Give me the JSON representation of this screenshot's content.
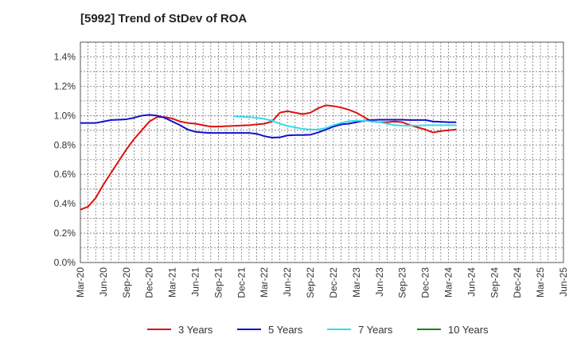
{
  "chart_data": {
    "type": "line",
    "title": "[5992]  Trend of StDev of ROA",
    "xlabel": "",
    "ylabel": "",
    "x_tick_labels": [
      "Mar-20",
      "Jun-20",
      "Sep-20",
      "Dec-20",
      "Mar-21",
      "Jun-21",
      "Sep-21",
      "Dec-21",
      "Mar-22",
      "Jun-22",
      "Sep-22",
      "Dec-22",
      "Mar-23",
      "Jun-23",
      "Sep-23",
      "Dec-23",
      "Mar-24",
      "Jun-24",
      "Sep-24",
      "Dec-24",
      "Mar-25",
      "Jun-25"
    ],
    "y_tick_labels": [
      "0.0%",
      "0.2%",
      "0.4%",
      "0.6%",
      "0.8%",
      "1.0%",
      "1.2%",
      "1.4%"
    ],
    "ylim": [
      0,
      1.5
    ],
    "grid": true,
    "legend_position": "bottom",
    "series": [
      {
        "name": "3 Years",
        "color": "#dd1111",
        "start_index": 0,
        "values": [
          0.36,
          0.38,
          0.44,
          0.53,
          0.61,
          0.69,
          0.77,
          0.84,
          0.9,
          0.96,
          0.99,
          0.99,
          0.98,
          0.96,
          0.95,
          0.945,
          0.935,
          0.925,
          0.925,
          0.928,
          0.93,
          0.933,
          0.935,
          0.94,
          0.945,
          0.96,
          1.02,
          1.03,
          1.02,
          1.01,
          1.02,
          1.05,
          1.07,
          1.065,
          1.055,
          1.04,
          1.02,
          0.99,
          0.96,
          0.955,
          0.955,
          0.96,
          0.955,
          0.935,
          0.92,
          0.905,
          0.885,
          0.895,
          0.9,
          0.905
        ]
      },
      {
        "name": "5 Years",
        "color": "#1111cc",
        "start_index": 0,
        "values": [
          0.95,
          0.95,
          0.95,
          0.96,
          0.97,
          0.972,
          0.975,
          0.985,
          1.0,
          1.005,
          1.0,
          0.985,
          0.96,
          0.935,
          0.905,
          0.89,
          0.885,
          0.882,
          0.882,
          0.882,
          0.882,
          0.882,
          0.882,
          0.876,
          0.86,
          0.85,
          0.852,
          0.865,
          0.868,
          0.868,
          0.87,
          0.885,
          0.905,
          0.925,
          0.94,
          0.945,
          0.955,
          0.965,
          0.97,
          0.972,
          0.972,
          0.972,
          0.972,
          0.97,
          0.97,
          0.97,
          0.96,
          0.958,
          0.955,
          0.955
        ]
      },
      {
        "name": "7 Years",
        "color": "#33ddee",
        "start_index": 20,
        "values": [
          0.995,
          0.992,
          0.99,
          0.985,
          0.978,
          0.965,
          0.945,
          0.93,
          0.92,
          0.91,
          0.905,
          0.905,
          0.915,
          0.935,
          0.95,
          0.962,
          0.965,
          0.965,
          0.96,
          0.955,
          0.945,
          0.935,
          0.932,
          0.932,
          0.932,
          0.935,
          0.935,
          0.935,
          0.935,
          0.935
        ]
      },
      {
        "name": "10 Years",
        "color": "#118811",
        "start_index": 0,
        "values": []
      }
    ]
  }
}
